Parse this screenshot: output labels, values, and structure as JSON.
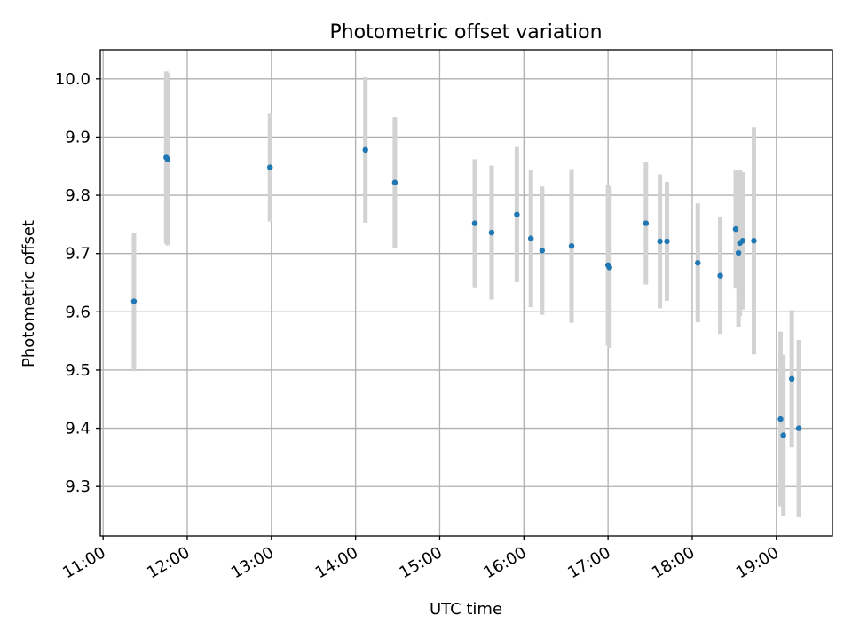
{
  "chart_data": {
    "type": "scatter",
    "title": "Photometric offset variation",
    "xlabel": "UTC time",
    "ylabel": "Photometric offset",
    "x_ticks": [
      "11:00",
      "12:00",
      "13:00",
      "14:00",
      "15:00",
      "16:00",
      "17:00",
      "18:00",
      "19:00"
    ],
    "y_ticks": [
      "9.3",
      "9.4",
      "9.5",
      "9.6",
      "9.7",
      "9.8",
      "9.9",
      "10.0"
    ],
    "xlim": [
      "10:58",
      "19:40"
    ],
    "ylim": [
      9.215,
      10.05
    ],
    "grid": true,
    "colors": {
      "point": "#1f77b4",
      "errorbar": "#d3d3d3"
    },
    "points": [
      {
        "t": "11:22",
        "y": 9.618,
        "err": 0.118
      },
      {
        "t": "11:45",
        "y": 9.865,
        "err": 0.148
      },
      {
        "t": "11:46",
        "y": 9.862,
        "err": 0.148
      },
      {
        "t": "12:59",
        "y": 9.848,
        "err": 0.093
      },
      {
        "t": "14:07",
        "y": 9.878,
        "err": 0.125
      },
      {
        "t": "14:28",
        "y": 9.822,
        "err": 0.112
      },
      {
        "t": "15:25",
        "y": 9.752,
        "err": 0.11
      },
      {
        "t": "15:37",
        "y": 9.736,
        "err": 0.115
      },
      {
        "t": "15:55",
        "y": 9.767,
        "err": 0.116
      },
      {
        "t": "16:05",
        "y": 9.726,
        "err": 0.118
      },
      {
        "t": "16:13",
        "y": 9.705,
        "err": 0.11
      },
      {
        "t": "16:34",
        "y": 9.713,
        "err": 0.132
      },
      {
        "t": "17:00",
        "y": 9.68,
        "err": 0.138
      },
      {
        "t": "17:01",
        "y": 9.676,
        "err": 0.138
      },
      {
        "t": "17:27",
        "y": 9.752,
        "err": 0.105
      },
      {
        "t": "17:37",
        "y": 9.721,
        "err": 0.115
      },
      {
        "t": "17:42",
        "y": 9.721,
        "err": 0.102
      },
      {
        "t": "18:04",
        "y": 9.684,
        "err": 0.102
      },
      {
        "t": "18:20",
        "y": 9.662,
        "err": 0.1
      },
      {
        "t": "18:31",
        "y": 9.742,
        "err": 0.102
      },
      {
        "t": "18:33",
        "y": 9.701,
        "err": 0.128
      },
      {
        "t": "18:34",
        "y": 9.718,
        "err": 0.125
      },
      {
        "t": "18:36",
        "y": 9.722,
        "err": 0.118
      },
      {
        "t": "18:44",
        "y": 9.722,
        "err": 0.195
      },
      {
        "t": "19:03",
        "y": 9.416,
        "err": 0.15
      },
      {
        "t": "19:05",
        "y": 9.388,
        "err": 0.138
      },
      {
        "t": "19:11",
        "y": 9.485,
        "err": 0.118
      },
      {
        "t": "19:16",
        "y": 9.4,
        "err": 0.152
      }
    ]
  }
}
